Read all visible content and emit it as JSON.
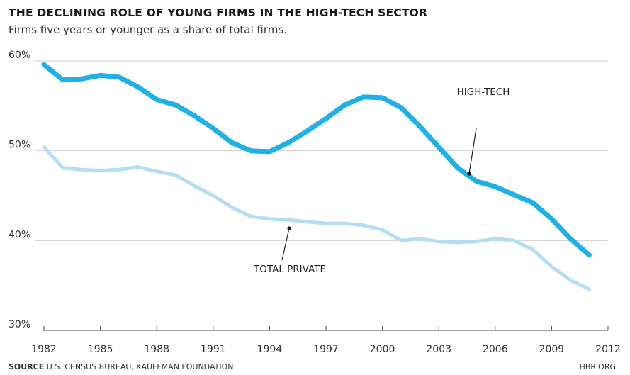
{
  "title": "THE DECLINING ROLE OF YOUNG FIRMS IN THE HIGH-TECH SECTOR",
  "subtitle": "Firms five years or younger as a share of total firms.",
  "source_label": "SOURCE",
  "source_text": "U.S. CENSUS BUREAU, KAUFFMAN FOUNDATION",
  "credit": "HBR.ORG",
  "chart_data": {
    "type": "line",
    "title": "THE DECLINING ROLE OF YOUNG FIRMS IN THE HIGH-TECH SECTOR",
    "subtitle": "Firms five years or younger as a share of total firms.",
    "xlabel": "",
    "ylabel": "",
    "xlim": [
      1982,
      2012
    ],
    "ylim": [
      30,
      60
    ],
    "x_ticks": [
      1982,
      1985,
      1988,
      1991,
      1994,
      1997,
      2000,
      2003,
      2006,
      2009,
      2012
    ],
    "y_ticks": [
      30,
      40,
      50,
      60
    ],
    "y_tick_labels": [
      "30%",
      "40%",
      "50%",
      "60%"
    ],
    "grid": "horizontal",
    "colors": {
      "high_tech": "#1db1e6",
      "total_private": "#b4def2",
      "grid": "#cfcfcf"
    },
    "x": [
      1982,
      1983,
      1984,
      1985,
      1986,
      1987,
      1988,
      1989,
      1990,
      1991,
      1992,
      1993,
      1994,
      1995,
      1996,
      1997,
      1998,
      1999,
      2000,
      2001,
      2002,
      2003,
      2004,
      2005,
      2006,
      2007,
      2008,
      2009,
      2010,
      2011
    ],
    "series": [
      {
        "name": "HIGH-TECH",
        "values": [
          59.6,
          57.9,
          58.0,
          58.4,
          58.2,
          57.1,
          55.7,
          55.1,
          53.9,
          52.5,
          50.9,
          50.0,
          49.9,
          50.9,
          52.2,
          53.6,
          55.1,
          56.0,
          55.9,
          54.8,
          52.7,
          50.4,
          48.1,
          46.6,
          46.0,
          45.1,
          44.2,
          42.4,
          40.2,
          38.4
        ]
      },
      {
        "name": "TOTAL PRIVATE",
        "values": [
          50.4,
          48.1,
          47.9,
          47.8,
          47.9,
          48.2,
          47.7,
          47.3,
          46.1,
          45.0,
          43.7,
          42.7,
          42.4,
          42.3,
          42.1,
          41.9,
          41.9,
          41.7,
          41.2,
          40.0,
          40.2,
          39.9,
          39.8,
          39.9,
          40.2,
          40.0,
          39.0,
          37.1,
          35.6,
          34.6
        ]
      }
    ],
    "annotations": [
      {
        "text": "HIGH-TECH",
        "series": "HIGH-TECH",
        "x": 2004.7,
        "y": 47.3
      },
      {
        "text": "TOTAL PRIVATE",
        "series": "TOTAL PRIVATE",
        "x": 1995.4,
        "y": 42.3
      }
    ]
  }
}
